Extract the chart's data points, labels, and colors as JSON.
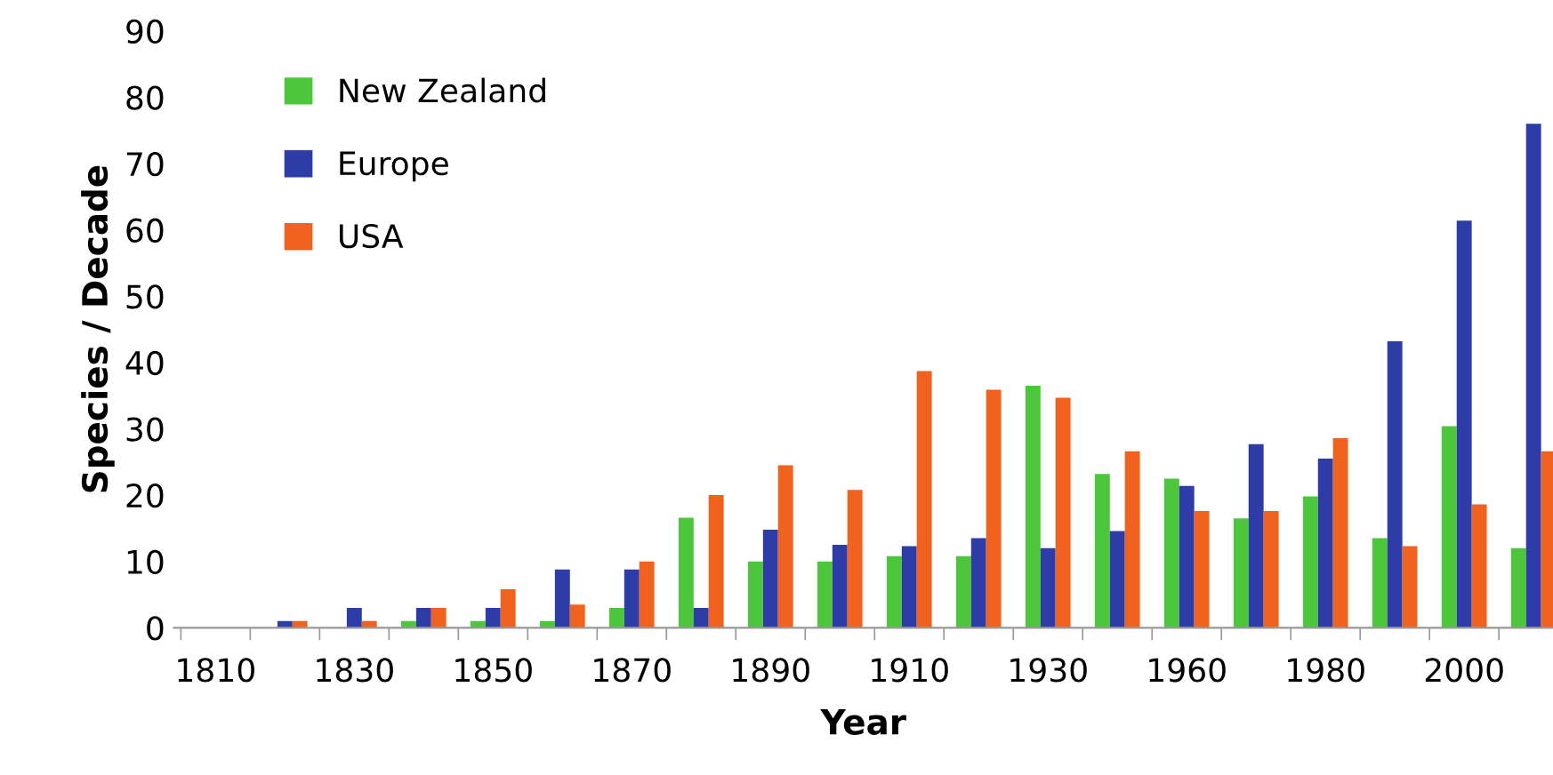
{
  "chart_data": {
    "type": "bar",
    "xlabel": "Year",
    "ylabel": "Species / Decade",
    "categories": [
      "1810",
      null,
      "1830",
      null,
      "1850",
      null,
      "1870",
      null,
      "1890",
      null,
      "1910",
      null,
      "1930",
      null,
      "1960",
      null,
      "1980",
      null,
      "2000",
      null
    ],
    "series": [
      {
        "name": "New Zealand",
        "color": "#4cc73c",
        "values": [
          0,
          0,
          0,
          1,
          1,
          1,
          3,
          16.6,
          10,
          10,
          10.8,
          10.8,
          36.5,
          23.2,
          22.5,
          16.5,
          19.8,
          13.5,
          30.4,
          12
        ]
      },
      {
        "name": "Europe",
        "color": "#2e3ca8",
        "values": [
          0,
          1,
          3,
          3,
          3,
          8.8,
          8.8,
          3,
          14.8,
          12.5,
          12.3,
          13.5,
          12,
          14.6,
          21.4,
          27.7,
          25.5,
          43.2,
          61.4,
          76
        ]
      },
      {
        "name": "USA",
        "color": "#f0621e",
        "values": [
          0,
          1,
          1,
          3,
          5.8,
          3.5,
          10,
          20,
          24.5,
          20.8,
          38.7,
          35.9,
          34.7,
          26.6,
          17.6,
          17.6,
          28.6,
          12.3,
          18.6,
          26.6
        ]
      }
    ],
    "ylim": [
      0,
      90
    ],
    "yticks": [
      0,
      10,
      20,
      30,
      40,
      50,
      60,
      70,
      80,
      90
    ],
    "grid": false,
    "legend": "top left"
  }
}
